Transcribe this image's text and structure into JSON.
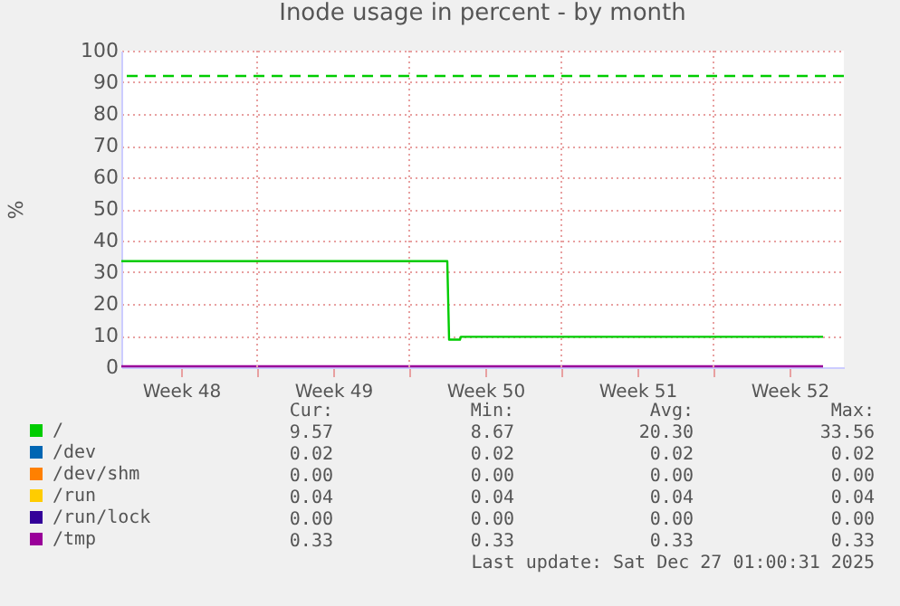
{
  "chart_data": {
    "type": "line",
    "title": "Inode usage in percent - by month",
    "ylabel": "%",
    "xlim": [
      "2025-11-24T18:00",
      "2025-12-28T00:00"
    ],
    "xticks": [
      {
        "value": "2025-11-27T12:00",
        "label": "Week 48"
      },
      {
        "value": "2025-12-01",
        "label": null
      },
      {
        "value": "2025-12-04T12:00",
        "label": "Week 49"
      },
      {
        "value": "2025-12-08",
        "label": null
      },
      {
        "value": "2025-12-11T12:00",
        "label": "Week 50"
      },
      {
        "value": "2025-12-15",
        "label": null
      },
      {
        "value": "2025-12-18T12:00",
        "label": "Week 51"
      },
      {
        "value": "2025-12-22",
        "label": null
      },
      {
        "value": "2025-12-25T12:00",
        "label": "Week 52"
      }
    ],
    "ylim": [
      0,
      100
    ],
    "yticks": [
      0,
      10,
      20,
      30,
      40,
      50,
      60,
      70,
      80,
      90,
      100
    ],
    "grid": true,
    "legend": "bottom",
    "marker": "none",
    "line_style": "solid",
    "series": [
      {
        "name": "/",
        "color": "#00cc00",
        "x": [
          "2025-11-24T18:00",
          "2025-12-09T18:00",
          "2025-12-09T20:00",
          "2025-12-10T08:00",
          "2025-12-10T09:00",
          "2025-12-27T01:00"
        ],
        "values": [
          33.5,
          33.5,
          8.7,
          8.7,
          9.6,
          9.6
        ]
      },
      {
        "name": "/dev",
        "color": "#0066b3"
      },
      {
        "name": "/dev/shm",
        "color": "#ff8000"
      },
      {
        "name": "/run",
        "color": "#ffcc00"
      },
      {
        "name": "/run/lock",
        "color": "#330099"
      },
      {
        "name": "/tmp",
        "color": "#990099",
        "x": [
          "2025-11-24T18:00",
          "2025-12-27T01:00"
        ],
        "values": [
          0.3,
          0.3
        ]
      }
    ],
    "ref_lines": [
      {
        "axis": "y",
        "value": 92,
        "color": "#00cc00",
        "line_style": "dashed"
      }
    ],
    "annotations": [
      "Cur:",
      "Min:",
      "Avg:",
      "Max:",
      "9.57",
      "8.67",
      "20.30",
      "33.56",
      "0.02",
      "0.02",
      "0.02",
      "0.02",
      "0.00",
      "0.00",
      "0.00",
      "0.00",
      "0.04",
      "0.04",
      "0.04",
      "0.04",
      "0.00",
      "0.00",
      "0.00",
      "0.00",
      "0.33",
      "0.33",
      "0.33",
      "0.33",
      "Last update: Sat Dec 27 01:00:31 2025"
    ]
  }
}
